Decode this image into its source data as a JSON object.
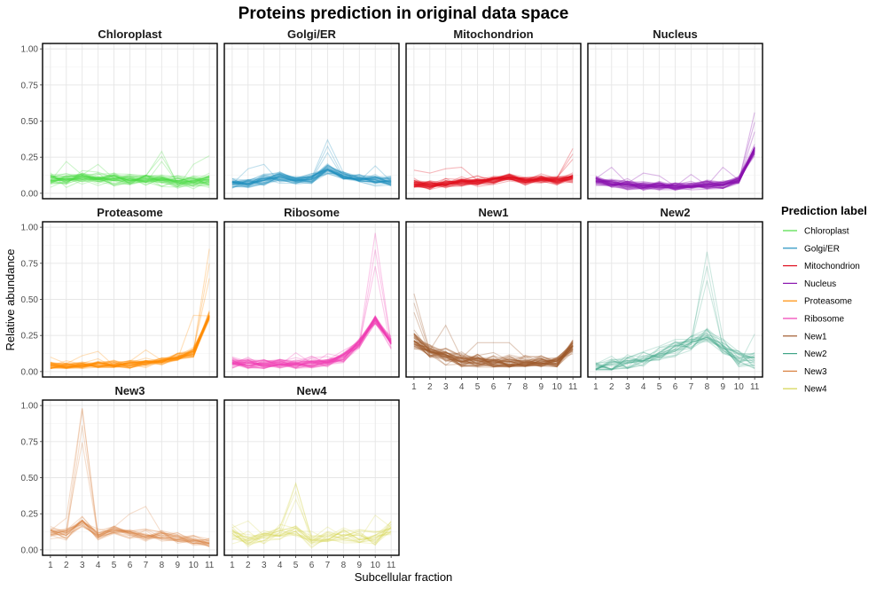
{
  "chart_data": {
    "type": "line",
    "title": "Proteins prediction in original data space",
    "xlabel": "Subcellular fraction",
    "ylabel": "Relative abundance",
    "x": [
      1,
      2,
      3,
      4,
      5,
      6,
      7,
      8,
      9,
      10,
      11
    ],
    "x_tick_labels": [
      "1",
      "2",
      "3",
      "4",
      "5",
      "6",
      "7",
      "8",
      "9",
      "10",
      "11"
    ],
    "y_tick_labels": [
      "0.00",
      "0.25",
      "0.50",
      "0.75",
      "1.00"
    ],
    "y_ticks": [
      0,
      0.25,
      0.5,
      0.75,
      1.0
    ],
    "ylim": [
      0,
      1
    ],
    "grid": true,
    "legend": {
      "title": "Prediction label",
      "position": "right",
      "items": [
        {
          "label": "Chloroplast",
          "color": "#4ddb44"
        },
        {
          "label": "Golgi/ER",
          "color": "#1f8fc0"
        },
        {
          "label": "Mitochondrion",
          "color": "#e0101f"
        },
        {
          "label": "Nucleus",
          "color": "#8a15ae"
        },
        {
          "label": "Proteasome",
          "color": "#ff8c00"
        },
        {
          "label": "Ribosome",
          "color": "#f03cb4"
        },
        {
          "label": "New1",
          "color": "#a0592c"
        },
        {
          "label": "New2",
          "color": "#3fa587"
        },
        {
          "label": "New3",
          "color": "#d87e3c"
        },
        {
          "label": "New4",
          "color": "#d4d44e"
        }
      ]
    },
    "facets": [
      {
        "name": "Chloroplast",
        "color": "#4ddb44",
        "lines": 40,
        "opacity": 0.28,
        "mean": [
          0.1,
          0.1,
          0.11,
          0.1,
          0.1,
          0.09,
          0.1,
          0.09,
          0.08,
          0.08,
          0.09
        ],
        "spread": 0.04,
        "peaks": [
          0.25,
          0.22,
          0.23,
          0.2,
          0.22,
          0.2,
          0.21,
          0.29,
          0.23,
          0.2,
          0.26
        ],
        "lows": [
          0.03,
          0.04,
          0.05,
          0.04,
          0.04,
          0.04,
          0.04,
          0.04,
          0.03,
          0.03,
          0.01
        ]
      },
      {
        "name": "Golgi/ER",
        "color": "#1f8fc0",
        "lines": 40,
        "opacity": 0.28,
        "mean": [
          0.07,
          0.07,
          0.09,
          0.11,
          0.09,
          0.1,
          0.16,
          0.12,
          0.1,
          0.09,
          0.08
        ],
        "spread": 0.035,
        "peaks": [
          0.18,
          0.17,
          0.2,
          0.22,
          0.2,
          0.22,
          0.37,
          0.26,
          0.22,
          0.19,
          0.2
        ],
        "lows": [
          0.02,
          0.02,
          0.03,
          0.03,
          0.03,
          0.03,
          0.04,
          0.03,
          0.03,
          0.02,
          0.02
        ]
      },
      {
        "name": "Mitochondrion",
        "color": "#e0101f",
        "lines": 45,
        "opacity": 0.3,
        "mean": [
          0.06,
          0.06,
          0.07,
          0.08,
          0.08,
          0.09,
          0.11,
          0.09,
          0.1,
          0.09,
          0.11
        ],
        "spread": 0.03,
        "peaks": [
          0.16,
          0.14,
          0.17,
          0.18,
          0.17,
          0.19,
          0.24,
          0.21,
          0.22,
          0.22,
          0.31
        ],
        "lows": [
          0.02,
          0.02,
          0.02,
          0.02,
          0.03,
          0.03,
          0.03,
          0.03,
          0.03,
          0.03,
          0.02
        ]
      },
      {
        "name": "Nucleus",
        "color": "#8a15ae",
        "lines": 45,
        "opacity": 0.3,
        "mean": [
          0.09,
          0.07,
          0.06,
          0.05,
          0.05,
          0.05,
          0.05,
          0.06,
          0.06,
          0.09,
          0.3
        ],
        "spread": 0.03,
        "peaks": [
          0.23,
          0.18,
          0.16,
          0.14,
          0.12,
          0.12,
          0.13,
          0.16,
          0.18,
          0.27,
          0.56
        ],
        "lows": [
          0.03,
          0.02,
          0.02,
          0.02,
          0.02,
          0.02,
          0.02,
          0.02,
          0.02,
          0.03,
          0.12
        ]
      },
      {
        "name": "Proteasome",
        "color": "#ff8c00",
        "lines": 40,
        "opacity": 0.28,
        "mean": [
          0.04,
          0.04,
          0.04,
          0.05,
          0.05,
          0.05,
          0.06,
          0.07,
          0.1,
          0.13,
          0.38
        ],
        "spread": 0.03,
        "peaks": [
          0.1,
          0.09,
          0.11,
          0.14,
          0.28,
          0.18,
          0.15,
          0.2,
          0.28,
          0.39,
          0.85
        ],
        "lows": [
          0.02,
          0.02,
          0.02,
          0.02,
          0.02,
          0.02,
          0.02,
          0.03,
          0.04,
          0.06,
          0.1
        ]
      },
      {
        "name": "Ribosome",
        "color": "#f03cb4",
        "lines": 40,
        "opacity": 0.28,
        "mean": [
          0.06,
          0.05,
          0.05,
          0.06,
          0.05,
          0.06,
          0.07,
          0.1,
          0.2,
          0.36,
          0.2
        ],
        "spread": 0.04,
        "peaks": [
          0.16,
          0.1,
          0.09,
          0.12,
          0.13,
          0.12,
          0.15,
          0.33,
          0.5,
          0.96,
          0.4
        ],
        "lows": [
          0.02,
          0.02,
          0.02,
          0.02,
          0.02,
          0.02,
          0.03,
          0.04,
          0.06,
          0.1,
          0.06
        ]
      },
      {
        "name": "New1",
        "color": "#a0592c",
        "lines": 45,
        "opacity": 0.32,
        "mean": [
          0.22,
          0.14,
          0.1,
          0.08,
          0.07,
          0.06,
          0.06,
          0.06,
          0.06,
          0.07,
          0.18
        ],
        "spread": 0.05,
        "peaks": [
          0.54,
          0.4,
          0.32,
          0.25,
          0.2,
          0.2,
          0.2,
          0.15,
          0.15,
          0.22,
          0.47
        ],
        "lows": [
          0.05,
          0.04,
          0.03,
          0.03,
          0.03,
          0.03,
          0.03,
          0.03,
          0.03,
          0.03,
          0.04
        ]
      },
      {
        "name": "New2",
        "color": "#3fa587",
        "lines": 25,
        "opacity": 0.26,
        "mean": [
          0.03,
          0.04,
          0.06,
          0.08,
          0.12,
          0.16,
          0.2,
          0.25,
          0.18,
          0.1,
          0.07
        ],
        "spread": 0.06,
        "peaks": [
          0.06,
          0.13,
          0.22,
          0.3,
          0.4,
          0.52,
          0.6,
          0.83,
          0.63,
          0.35,
          0.26
        ],
        "lows": [
          0.01,
          0.01,
          0.02,
          0.02,
          0.02,
          0.02,
          0.03,
          0.03,
          0.03,
          0.02,
          0.02
        ]
      },
      {
        "name": "New3",
        "color": "#d87e3c",
        "lines": 25,
        "opacity": 0.26,
        "mean": [
          0.12,
          0.11,
          0.2,
          0.1,
          0.14,
          0.12,
          0.1,
          0.1,
          0.08,
          0.06,
          0.05
        ],
        "spread": 0.04,
        "peaks": [
          0.25,
          0.22,
          0.98,
          0.22,
          0.35,
          0.25,
          0.3,
          0.18,
          0.12,
          0.1,
          0.08
        ],
        "lows": [
          0.04,
          0.04,
          0.06,
          0.04,
          0.05,
          0.04,
          0.04,
          0.04,
          0.03,
          0.02,
          0.02
        ]
      },
      {
        "name": "New4",
        "color": "#d4d44e",
        "lines": 20,
        "opacity": 0.26,
        "mean": [
          0.12,
          0.07,
          0.1,
          0.12,
          0.13,
          0.06,
          0.1,
          0.09,
          0.09,
          0.08,
          0.16
        ],
        "spread": 0.06,
        "peaks": [
          0.37,
          0.2,
          0.28,
          0.33,
          0.46,
          0.2,
          0.28,
          0.26,
          0.28,
          0.24,
          0.41
        ],
        "lows": [
          0.02,
          0.01,
          0.02,
          0.02,
          0.02,
          0.01,
          0.02,
          0.02,
          0.02,
          0.02,
          0.03
        ]
      }
    ]
  }
}
